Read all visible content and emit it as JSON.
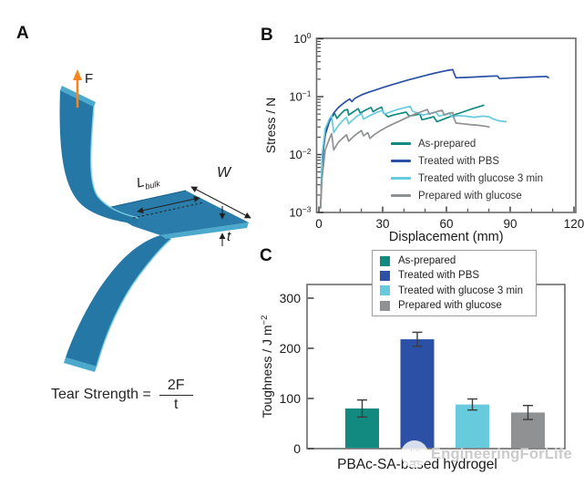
{
  "panel_a": {
    "label": "A",
    "force_label": "F",
    "length_label": {
      "base": "L",
      "sub": "bulk"
    },
    "width_label": "W",
    "thickness_label": "t",
    "formula": {
      "lhs": "Tear Strength =",
      "numerator": "2F",
      "denominator": "t"
    },
    "specimen_color": "#2577a6",
    "specimen_edge_highlight": "#7fd0e4",
    "force_arrow_color": "#f6851f"
  },
  "panel_b": {
    "label": "B"
  },
  "panel_c": {
    "label": "C"
  },
  "watermark": {
    "face": "· ·",
    "mouth": "‿",
    "text": "EngineeringForLife"
  },
  "chart_data": [
    {
      "id": "stress-vs-displacement",
      "type": "line",
      "title": "",
      "xlabel": "Displacement (mm)",
      "ylabel": "Stress / N",
      "xlim": [
        0,
        121
      ],
      "x_ticks": [
        0,
        30,
        60,
        90,
        120
      ],
      "x_minor_step": 10,
      "yscale": "log",
      "ylim": [
        0.001,
        1
      ],
      "y_ticks": [
        {
          "value": 1,
          "label_base": "10",
          "label_exp": "0"
        },
        {
          "value": 0.1,
          "label_base": "10",
          "label_exp": "−1"
        },
        {
          "value": 0.01,
          "label_base": "10",
          "label_exp": "−2"
        },
        {
          "value": 0.001,
          "label_base": "10",
          "label_exp": "−3"
        }
      ],
      "grid": false,
      "legend_position": "inside lower right",
      "series": [
        {
          "name": "As-prepared",
          "color": "#128a80",
          "points": [
            [
              0.8,
              0.0012
            ],
            [
              1.5,
              0.006
            ],
            [
              2.5,
              0.018
            ],
            [
              4,
              0.032
            ],
            [
              6,
              0.044
            ],
            [
              7.5,
              0.051
            ],
            [
              8.5,
              0.042
            ],
            [
              10,
              0.049
            ],
            [
              12,
              0.058
            ],
            [
              13.5,
              0.06
            ],
            [
              14,
              0.048
            ],
            [
              16,
              0.054
            ],
            [
              18.5,
              0.062
            ],
            [
              19.5,
              0.052
            ],
            [
              22,
              0.059
            ],
            [
              24.5,
              0.065
            ],
            [
              25.5,
              0.055
            ],
            [
              27.5,
              0.061
            ],
            [
              29.5,
              0.066
            ],
            [
              30.5,
              0.052
            ],
            [
              32.5,
              0.045
            ],
            [
              35,
              0.048
            ],
            [
              38,
              0.051
            ],
            [
              41,
              0.054
            ],
            [
              42.5,
              0.046
            ],
            [
              45,
              0.048
            ],
            [
              47.5,
              0.05
            ],
            [
              48.5,
              0.04
            ],
            [
              51,
              0.042
            ],
            [
              54,
              0.045
            ],
            [
              55.5,
              0.037
            ],
            [
              58,
              0.04
            ],
            [
              61,
              0.044
            ],
            [
              64,
              0.049
            ],
            [
              67,
              0.053
            ],
            [
              70,
              0.058
            ],
            [
              73,
              0.063
            ],
            [
              76,
              0.068
            ],
            [
              77.5,
              0.071
            ]
          ]
        },
        {
          "name": "Treated with PBS",
          "color": "#2b50a5",
          "points": [
            [
              0.8,
              0.0012
            ],
            [
              1.5,
              0.008
            ],
            [
              3,
              0.022
            ],
            [
              5,
              0.038
            ],
            [
              7,
              0.052
            ],
            [
              9,
              0.064
            ],
            [
              11,
              0.074
            ],
            [
              13,
              0.084
            ],
            [
              14.5,
              0.091
            ],
            [
              15.5,
              0.082
            ],
            [
              17,
              0.094
            ],
            [
              20,
              0.107
            ],
            [
              23,
              0.118
            ],
            [
              26,
              0.128
            ],
            [
              30,
              0.143
            ],
            [
              34,
              0.159
            ],
            [
              38,
              0.176
            ],
            [
              42,
              0.194
            ],
            [
              46,
              0.212
            ],
            [
              50,
              0.232
            ],
            [
              54,
              0.252
            ],
            [
              58,
              0.272
            ],
            [
              61,
              0.286
            ],
            [
              63,
              0.292
            ],
            [
              63.5,
              0.258
            ],
            [
              64.5,
              0.212
            ],
            [
              68,
              0.214
            ],
            [
              72,
              0.217
            ],
            [
              76,
              0.221
            ],
            [
              80,
              0.225
            ],
            [
              84,
              0.228
            ],
            [
              85,
              0.205
            ],
            [
              88,
              0.208
            ],
            [
              92,
              0.212
            ],
            [
              96,
              0.215
            ],
            [
              100,
              0.218
            ],
            [
              104,
              0.221
            ],
            [
              107,
              0.224
            ],
            [
              108,
              0.213
            ]
          ]
        },
        {
          "name": "Treated with glucose 3 min",
          "color": "#67cbdd",
          "points": [
            [
              0.8,
              0.0012
            ],
            [
              1.5,
              0.01
            ],
            [
              3,
              0.028
            ],
            [
              5,
              0.042
            ],
            [
              6,
              0.047
            ],
            [
              7,
              0.024
            ],
            [
              9,
              0.031
            ],
            [
              11,
              0.038
            ],
            [
              13,
              0.044
            ],
            [
              14,
              0.034
            ],
            [
              16,
              0.04
            ],
            [
              18,
              0.046
            ],
            [
              20,
              0.051
            ],
            [
              21,
              0.041
            ],
            [
              24,
              0.047
            ],
            [
              27,
              0.053
            ],
            [
              30,
              0.058
            ],
            [
              31,
              0.05
            ],
            [
              34,
              0.055
            ],
            [
              37,
              0.06
            ],
            [
              40,
              0.064
            ],
            [
              43,
              0.068
            ],
            [
              44,
              0.056
            ],
            [
              46.5,
              0.052
            ],
            [
              49,
              0.048
            ],
            [
              52,
              0.051
            ],
            [
              55,
              0.054
            ],
            [
              56.5,
              0.046
            ],
            [
              59,
              0.049
            ],
            [
              61.5,
              0.052
            ],
            [
              62.5,
              0.045
            ],
            [
              65,
              0.047
            ],
            [
              69,
              0.046
            ],
            [
              73,
              0.044
            ],
            [
              77,
              0.046
            ],
            [
              80,
              0.045
            ],
            [
              82,
              0.041
            ],
            [
              85,
              0.038
            ],
            [
              88,
              0.037
            ]
          ]
        },
        {
          "name": "Prepared with glucose",
          "color": "#8f9193",
          "points": [
            [
              0.8,
              0.0012
            ],
            [
              1.5,
              0.004
            ],
            [
              3,
              0.012
            ],
            [
              5,
              0.019
            ],
            [
              6,
              0.023
            ],
            [
              7,
              0.012
            ],
            [
              9,
              0.016
            ],
            [
              11,
              0.019
            ],
            [
              13,
              0.022
            ],
            [
              14,
              0.017
            ],
            [
              16,
              0.02
            ],
            [
              18,
              0.023
            ],
            [
              20,
              0.026
            ],
            [
              21,
              0.021
            ],
            [
              23,
              0.024
            ],
            [
              24,
              0.019
            ],
            [
              26,
              0.022
            ],
            [
              29,
              0.026
            ],
            [
              32,
              0.03
            ],
            [
              35,
              0.034
            ],
            [
              38,
              0.038
            ],
            [
              41,
              0.043
            ],
            [
              44,
              0.048
            ],
            [
              47,
              0.053
            ],
            [
              50,
              0.058
            ],
            [
              51,
              0.06
            ],
            [
              52,
              0.05
            ],
            [
              54,
              0.053
            ],
            [
              56,
              0.056
            ],
            [
              58,
              0.058
            ],
            [
              59,
              0.048
            ],
            [
              61,
              0.051
            ],
            [
              63,
              0.053
            ],
            [
              63.5,
              0.043
            ],
            [
              64.5,
              0.035
            ],
            [
              68,
              0.034
            ],
            [
              71,
              0.033
            ],
            [
              75,
              0.032
            ],
            [
              78,
              0.031
            ],
            [
              80,
              0.03
            ]
          ]
        }
      ]
    },
    {
      "id": "toughness-bars",
      "type": "bar",
      "title": "",
      "xlabel": "PBAc-SA-based hydrogel",
      "ylabel_base": "Toughness / J m",
      "ylabel_exp": "−2",
      "ylim": [
        0,
        327
      ],
      "y_ticks": [
        0,
        100,
        200,
        300
      ],
      "grid": false,
      "legend_position": "top boxed",
      "categories": [
        "As-prepared",
        "Treated with PBS",
        "Treated with glucose 3 min",
        "Prepared with glucose"
      ],
      "series": [
        {
          "name": "As-prepared",
          "value": 80,
          "error": 17,
          "color": "#128a80"
        },
        {
          "name": "Treated with PBS",
          "value": 218,
          "error": 14,
          "color": "#2b50a5"
        },
        {
          "name": "Treated with glucose 3 min",
          "value": 88,
          "error": 11,
          "color": "#67cbdd"
        },
        {
          "name": "Prepared with glucose",
          "value": 72,
          "error": 14,
          "color": "#8f9193"
        }
      ]
    }
  ]
}
